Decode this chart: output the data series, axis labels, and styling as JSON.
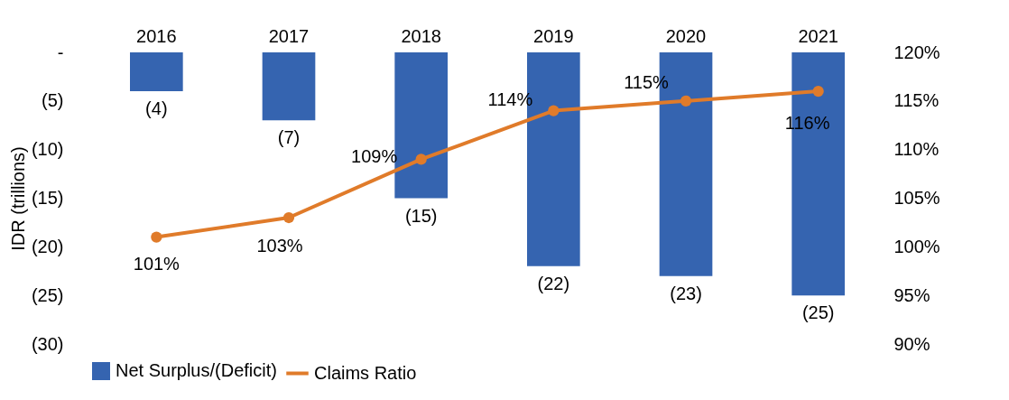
{
  "chart_data": {
    "type": "bar",
    "categories": [
      "2016",
      "2017",
      "2018",
      "2019",
      "2020",
      "2021"
    ],
    "ylabel": "IDR (trillions)",
    "ylim": [
      -30,
      0
    ],
    "yticks": [
      {
        "value": 0,
        "label": "-"
      },
      {
        "value": -5,
        "label": "(5)"
      },
      {
        "value": -10,
        "label": "(10)"
      },
      {
        "value": -15,
        "label": "(15)"
      },
      {
        "value": -20,
        "label": "(20)"
      },
      {
        "value": -25,
        "label": "(25)"
      },
      {
        "value": -30,
        "label": "(30)"
      }
    ],
    "y2lim": [
      90,
      120
    ],
    "y2ticks": [
      {
        "value": 90,
        "label": "90%"
      },
      {
        "value": 95,
        "label": "95%"
      },
      {
        "value": 100,
        "label": "100%"
      },
      {
        "value": 105,
        "label": "105%"
      },
      {
        "value": 110,
        "label": "110%"
      },
      {
        "value": 115,
        "label": "115%"
      },
      {
        "value": 120,
        "label": "120%"
      }
    ],
    "series": [
      {
        "name": "Net Surplus/(Deficit)",
        "color": "#3564b0",
        "values": [
          -4,
          -7,
          -15,
          -22,
          -23,
          -25
        ],
        "value_labels": [
          "(4)",
          "(7)",
          "(15)",
          "(22)",
          "(23)",
          "(25)"
        ]
      },
      {
        "name": "Claims Ratio",
        "type": "line",
        "axis": "y2",
        "color": "#e07b2a",
        "marker": "circle",
        "values": [
          101,
          103,
          109,
          114,
          115,
          116
        ],
        "value_labels": [
          "101%",
          "103%",
          "109%",
          "114%",
          "115%",
          "116%"
        ]
      }
    ],
    "grid": false,
    "legend": "bottom"
  }
}
